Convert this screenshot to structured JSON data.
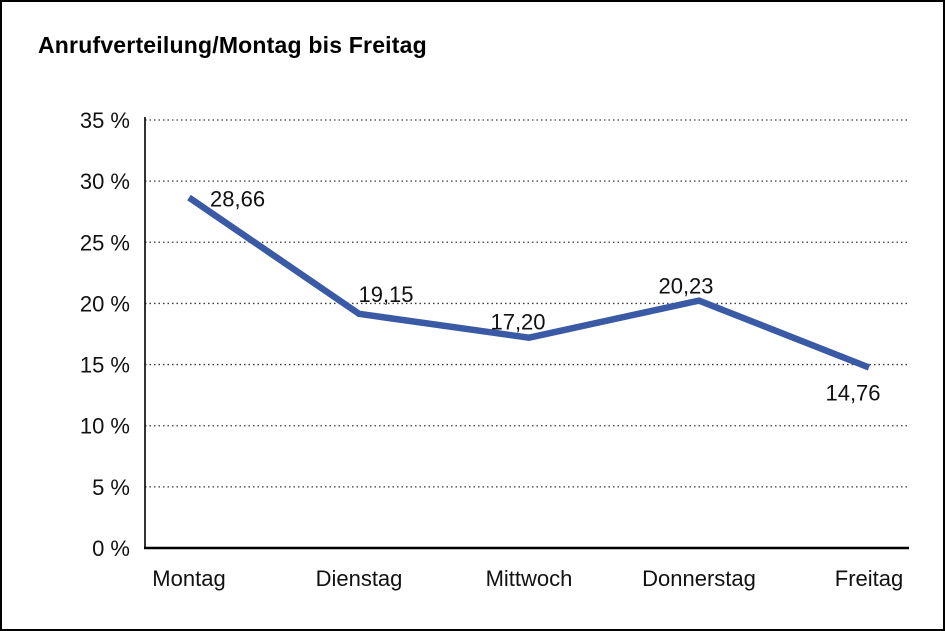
{
  "window": {
    "background": "#ffffff",
    "border_color": "#000000"
  },
  "chart_data": {
    "type": "line",
    "title": "Anrufverteilung/Montag bis Freitag",
    "categories": [
      "Montag",
      "Dienstag",
      "Mittwoch",
      "Donnerstag",
      "Freitag"
    ],
    "values": [
      28.66,
      19.15,
      17.2,
      20.23,
      14.76
    ],
    "value_labels": [
      "28,66",
      "19,15",
      "17,20",
      "20,23",
      "14,76"
    ],
    "y_tick_labels": [
      "0 %",
      "5 %",
      "10 %",
      "15 %",
      "20 %",
      "25 %",
      "30 %",
      "35 %"
    ],
    "ylim": [
      0,
      35
    ],
    "y_tick_step": 5,
    "xlabel": "",
    "ylabel": "",
    "grid": "horizontal-dotted",
    "legend": "none",
    "line_color": "#3A5AA5",
    "text_color": "#111111",
    "axis_color": "#000000"
  }
}
